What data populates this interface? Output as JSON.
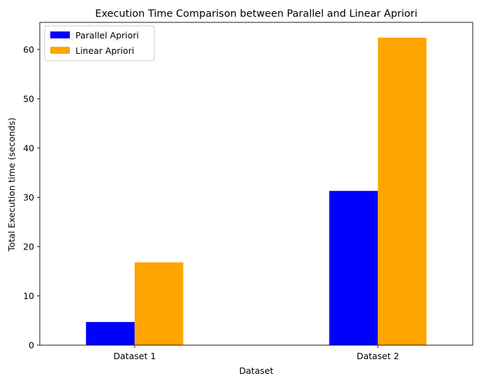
{
  "chart_data": {
    "type": "bar",
    "title": "Execution Time Comparison between Parallel and Linear Apriori",
    "xlabel": "Dataset",
    "ylabel": "Total Execution time (seconds)",
    "categories": [
      "Dataset 1",
      "Dataset 2"
    ],
    "series": [
      {
        "name": "Parallel Apriori",
        "color": "#0000ff",
        "values": [
          4.7,
          31.3
        ]
      },
      {
        "name": "Linear Apriori",
        "color": "#ffa500",
        "values": [
          16.8,
          62.4
        ]
      }
    ],
    "ylim": [
      0,
      65.5
    ],
    "yticks": [
      0,
      10,
      20,
      30,
      40,
      50,
      60
    ],
    "grid": false,
    "legend_position": "top-left"
  }
}
